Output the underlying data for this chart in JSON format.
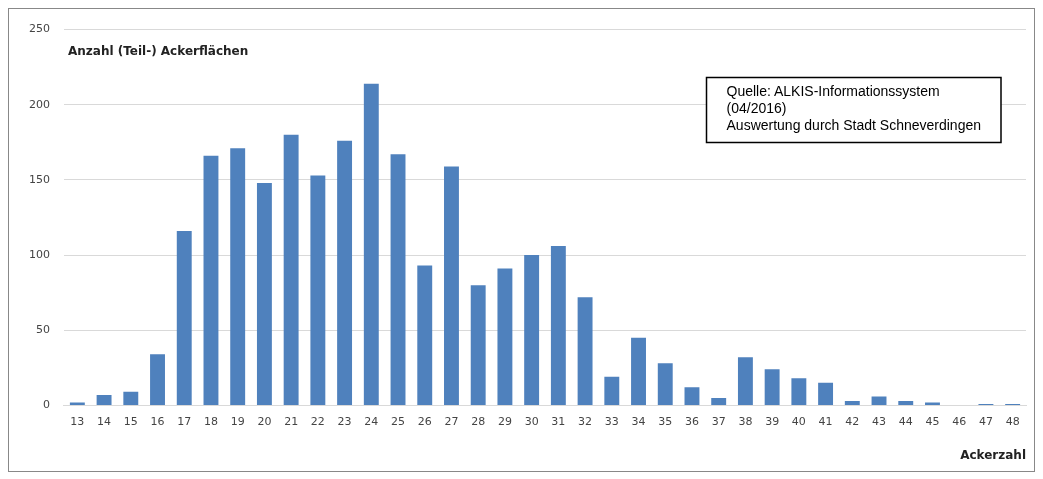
{
  "chart_data": {
    "type": "bar",
    "ylabel": "Anzahl (Teil-) Ackerflächen",
    "xlabel": "Ackerzahl",
    "annotations": [
      "Quelle: ALKIS-Informationssystem\n(04/2016)\nAuswertung durch Stadt Schneverdingen"
    ],
    "categories": [
      "13",
      "14",
      "15",
      "16",
      "17",
      "18",
      "19",
      "20",
      "21",
      "22",
      "23",
      "24",
      "25",
      "26",
      "27",
      "28",
      "29",
      "30",
      "31",
      "32",
      "33",
      "34",
      "35",
      "36",
      "37",
      "38",
      "39",
      "40",
      "41",
      "42",
      "43",
      "44",
      "45",
      "46",
      "47",
      "48"
    ],
    "values": [
      2,
      7,
      9,
      34,
      116,
      166,
      171,
      148,
      180,
      153,
      176,
      214,
      167,
      93,
      159,
      80,
      91,
      100,
      106,
      72,
      19,
      45,
      28,
      12,
      5,
      32,
      24,
      18,
      15,
      3,
      6,
      3,
      2,
      0,
      1,
      1
    ],
    "color": "#4f81bd",
    "ylim": [
      0,
      250
    ],
    "yticks": [
      0,
      50,
      100,
      150,
      200,
      250
    ],
    "grid": "y",
    "legend": false
  }
}
